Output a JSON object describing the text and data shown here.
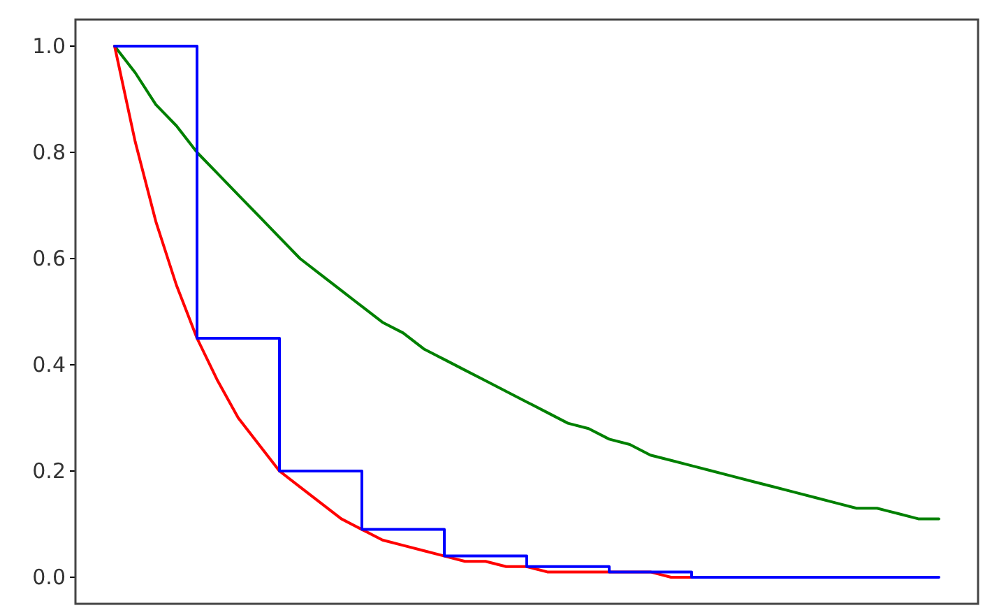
{
  "chart_data": {
    "type": "line",
    "ylim": [
      -0.05,
      1.05
    ],
    "categories": [
      null,
      null,
      null,
      null,
      null,
      null,
      null,
      null,
      null,
      null,
      null,
      null,
      null,
      null,
      null,
      null,
      null,
      null,
      null,
      null,
      null,
      null,
      null,
      null,
      null,
      null,
      null,
      null,
      null,
      null,
      null,
      null,
      null,
      null,
      null,
      null,
      null,
      null,
      null,
      null,
      null
    ],
    "yticks": [
      {
        "value": 0,
        "label": "0.0"
      },
      {
        "value": 0.2,
        "label": "0.2"
      },
      {
        "value": 0.4,
        "label": "0.4"
      },
      {
        "value": 0.6,
        "label": "0.6"
      },
      {
        "value": 0.8,
        "label": "0.8"
      },
      {
        "value": 1,
        "label": "1.0"
      }
    ],
    "tick_labels": "y",
    "grid": false,
    "line_style": "solid",
    "marker": "none",
    "series": [
      {
        "type": "line",
        "color": "#008000",
        "values": [
          1,
          0.95,
          0.89,
          0.85,
          0.8,
          0.76,
          0.72,
          0.68,
          0.64,
          0.6,
          0.57,
          0.54,
          0.51,
          0.48,
          0.46,
          0.43,
          0.41,
          0.39,
          0.37,
          0.35,
          0.33,
          0.31,
          0.29,
          0.28,
          0.26,
          0.25,
          0.23,
          0.22,
          0.21,
          0.2,
          0.19,
          0.18,
          0.17,
          0.16,
          0.15,
          0.14,
          0.13,
          0.13,
          0.12,
          0.11,
          0.11
        ]
      },
      {
        "type": "line",
        "color": "#ff0000",
        "values": [
          1,
          0.82,
          0.67,
          0.55,
          0.45,
          0.37,
          0.3,
          0.25,
          0.2,
          0.17,
          0.14,
          0.11,
          0.09,
          0.07,
          0.06,
          0.05,
          0.04,
          0.03,
          0.03,
          0.02,
          0.02,
          0.01,
          0.01,
          0.01,
          0.01,
          0.01,
          0.01,
          0,
          0,
          0,
          null,
          null,
          null,
          null,
          null,
          null,
          null,
          null,
          null,
          null,
          null
        ]
      },
      {
        "type": "step",
        "color": "#0000ff",
        "values": [
          1,
          1,
          1,
          1,
          0.45,
          0.45,
          0.45,
          0.45,
          0.2,
          0.2,
          0.2,
          0.2,
          0.09,
          0.09,
          0.09,
          0.09,
          0.04,
          0.04,
          0.04,
          0.04,
          0.02,
          0.02,
          0.02,
          0.02,
          0.01,
          0.01,
          0.01,
          0.01,
          0,
          0,
          0,
          0,
          0,
          0,
          0,
          0,
          0,
          0,
          0,
          0,
          0
        ]
      }
    ]
  }
}
